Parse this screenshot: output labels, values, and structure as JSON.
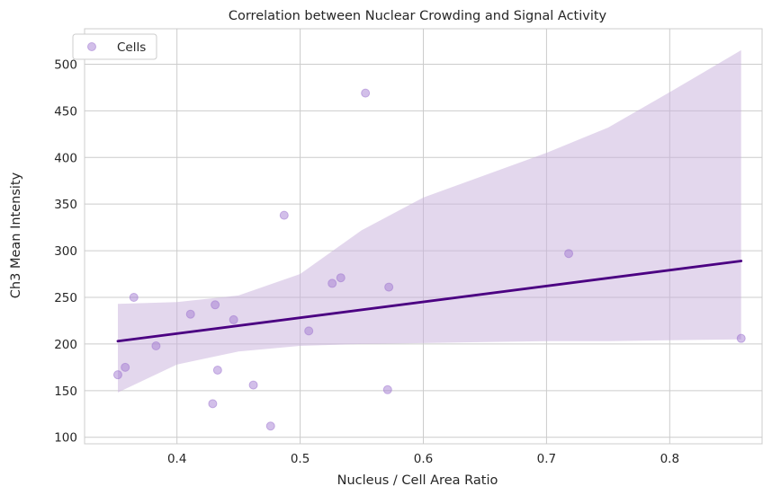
{
  "chart_data": {
    "type": "scatter",
    "title": "Correlation between Nuclear Crowding and Signal Activity",
    "xlabel": "Nucleus / Cell Area Ratio",
    "ylabel": "Ch3 Mean Intensity",
    "xlim": [
      0.325,
      0.875
    ],
    "ylim": [
      93,
      538
    ],
    "xticks": [
      0.4,
      0.5,
      0.6,
      0.7,
      0.8
    ],
    "xtick_labels": [
      "0.4",
      "0.5",
      "0.6",
      "0.7",
      "0.8"
    ],
    "yticks": [
      100,
      150,
      200,
      250,
      300,
      350,
      400,
      450,
      500
    ],
    "ytick_labels": [
      "100",
      "150",
      "200",
      "250",
      "300",
      "350",
      "400",
      "450",
      "500"
    ],
    "grid": true,
    "legend": {
      "position": "top-left",
      "entries": [
        "Cells"
      ]
    },
    "series": [
      {
        "name": "Cells",
        "kind": "scatter",
        "color": "#9b72cf",
        "points": [
          [
            0.352,
            167
          ],
          [
            0.358,
            175
          ],
          [
            0.365,
            250
          ],
          [
            0.383,
            198
          ],
          [
            0.411,
            232
          ],
          [
            0.429,
            136
          ],
          [
            0.431,
            242
          ],
          [
            0.433,
            172
          ],
          [
            0.446,
            226
          ],
          [
            0.462,
            156
          ],
          [
            0.476,
            112
          ],
          [
            0.487,
            338
          ],
          [
            0.507,
            214
          ],
          [
            0.526,
            265
          ],
          [
            0.533,
            271
          ],
          [
            0.553,
            469
          ],
          [
            0.571,
            151
          ],
          [
            0.572,
            261
          ],
          [
            0.718,
            297
          ],
          [
            0.858,
            206
          ]
        ]
      },
      {
        "kind": "regression_line",
        "color": "#4b0082",
        "x": [
          0.352,
          0.858
        ],
        "y": [
          203,
          289
        ]
      },
      {
        "kind": "confidence_band",
        "color": "#c8b0dc",
        "x": [
          0.352,
          0.4,
          0.45,
          0.5,
          0.55,
          0.6,
          0.65,
          0.7,
          0.75,
          0.8,
          0.858
        ],
        "upper": [
          243,
          245,
          252,
          275,
          322,
          357,
          381,
          405,
          432,
          470,
          515
        ],
        "lower": [
          148,
          178,
          192,
          198,
          200,
          201,
          202,
          203,
          203,
          204,
          205
        ]
      }
    ]
  }
}
